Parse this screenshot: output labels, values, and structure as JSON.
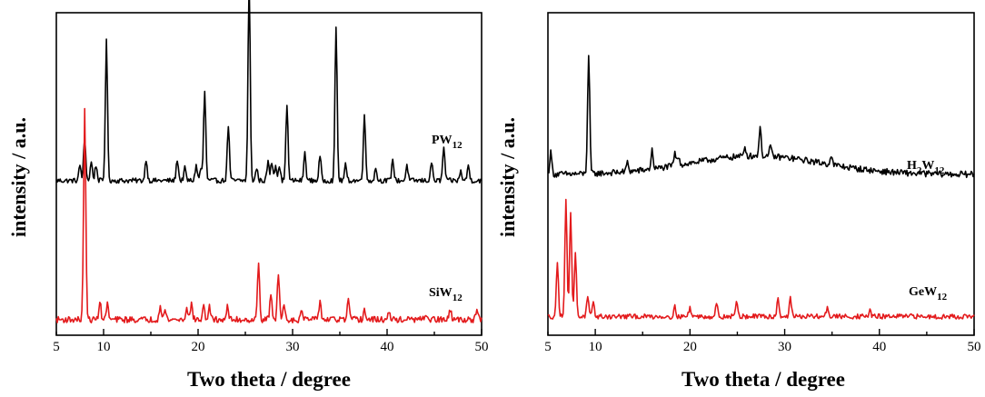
{
  "chart_data": [
    {
      "type": "line",
      "xlabel": "Two theta / degree",
      "ylabel": "intensity / a.u.",
      "xlim": [
        5,
        50
      ],
      "xticks": [
        10,
        20,
        30,
        40,
        50
      ],
      "ylim": [
        0,
        100
      ],
      "yticks_shown": false,
      "grid": false,
      "series": [
        {
          "name": "PW12",
          "label_main": "PW",
          "label_sub": "12",
          "color": "#000000",
          "baseline": 48,
          "noise": 0.8,
          "peaks": [
            [
              7.5,
              5
            ],
            [
              8.0,
              14
            ],
            [
              8.7,
              6
            ],
            [
              9.2,
              5
            ],
            [
              10.3,
              45
            ],
            [
              14.5,
              7
            ],
            [
              17.8,
              7
            ],
            [
              18.6,
              4
            ],
            [
              19.8,
              5
            ],
            [
              20.3,
              4
            ],
            [
              20.7,
              29
            ],
            [
              23.2,
              18
            ],
            [
              25.4,
              65
            ],
            [
              26.2,
              4
            ],
            [
              27.4,
              6
            ],
            [
              27.8,
              6
            ],
            [
              28.2,
              5
            ],
            [
              28.6,
              5
            ],
            [
              29.4,
              25
            ],
            [
              31.3,
              9
            ],
            [
              32.9,
              8
            ],
            [
              34.6,
              50
            ],
            [
              35.6,
              5
            ],
            [
              37.6,
              22
            ],
            [
              38.8,
              4
            ],
            [
              40.6,
              7
            ],
            [
              42.1,
              5
            ],
            [
              44.7,
              6
            ],
            [
              46.0,
              11
            ],
            [
              47.8,
              3
            ],
            [
              48.6,
              5
            ]
          ]
        },
        {
          "name": "SiW12",
          "label_main": "SiW",
          "label_sub": "12",
          "color": "#e31a1c",
          "baseline": 3,
          "noise": 1.0,
          "peaks": [
            [
              8.0,
              68
            ],
            [
              9.6,
              6
            ],
            [
              10.4,
              5
            ],
            [
              16.0,
              5
            ],
            [
              16.5,
              3
            ],
            [
              18.8,
              4
            ],
            [
              19.3,
              5
            ],
            [
              20.6,
              4
            ],
            [
              21.2,
              4
            ],
            [
              23.1,
              4
            ],
            [
              26.4,
              18
            ],
            [
              27.7,
              8
            ],
            [
              28.5,
              15
            ],
            [
              29.1,
              5
            ],
            [
              31.0,
              3
            ],
            [
              32.9,
              6
            ],
            [
              35.9,
              6
            ],
            [
              37.6,
              3
            ],
            [
              40.2,
              2
            ],
            [
              44.1,
              2
            ],
            [
              46.7,
              3
            ],
            [
              49.5,
              3
            ]
          ]
        }
      ]
    },
    {
      "type": "line",
      "xlabel": "Two theta / degree",
      "ylabel": "intensity / a.u.",
      "xlim": [
        5,
        50
      ],
      "xticks": [
        10,
        20,
        30,
        40,
        50
      ],
      "ylim": [
        0,
        100
      ],
      "yticks_shown": false,
      "grid": false,
      "series": [
        {
          "name": "H2W12",
          "label_main": "H",
          "label_sub": "2",
          "label_main2": "W",
          "label_sub2": "12",
          "color": "#000000",
          "baseline": 50,
          "noise": 1.0,
          "hump": [
            27,
            7,
            6
          ],
          "peaks": [
            [
              5.3,
              7
            ],
            [
              9.3,
              38
            ],
            [
              13.4,
              3
            ],
            [
              16.0,
              6
            ],
            [
              18.4,
              4
            ],
            [
              18.8,
              3
            ],
            [
              25.8,
              3
            ],
            [
              27.4,
              9
            ],
            [
              28.5,
              3
            ],
            [
              34.9,
              3
            ]
          ]
        },
        {
          "name": "GeW12",
          "label_main": "GeW",
          "label_sub": "12",
          "color": "#e31a1c",
          "baseline": 4,
          "noise": 0.8,
          "peaks": [
            [
              6.0,
              17
            ],
            [
              6.9,
              38
            ],
            [
              7.4,
              33
            ],
            [
              7.9,
              20
            ],
            [
              9.2,
              6
            ],
            [
              9.8,
              4
            ],
            [
              18.4,
              3
            ],
            [
              20.0,
              3
            ],
            [
              22.8,
              4
            ],
            [
              24.9,
              5
            ],
            [
              29.3,
              6
            ],
            [
              30.6,
              6
            ],
            [
              34.5,
              3
            ],
            [
              39.0,
              2
            ]
          ]
        }
      ]
    }
  ]
}
